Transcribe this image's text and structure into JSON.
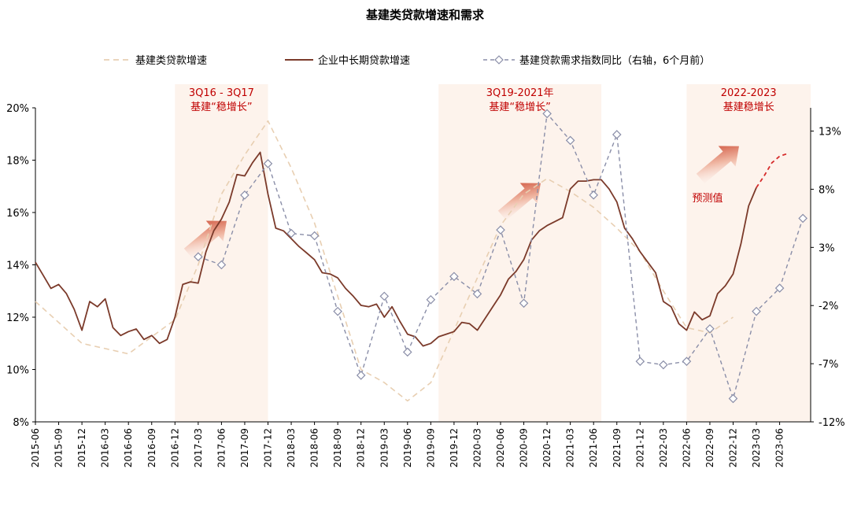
{
  "chart_data": {
    "type": "line",
    "title": "基建类贷款增速和需求",
    "x": [
      "2015-06",
      "2015-09",
      "2015-12",
      "2016-03",
      "2016-06",
      "2016-09",
      "2016-12",
      "2017-03",
      "2017-06",
      "2017-09",
      "2017-12",
      "2018-03",
      "2018-06",
      "2018-09",
      "2018-12",
      "2019-03",
      "2019-06",
      "2019-09",
      "2019-12",
      "2020-03",
      "2020-06",
      "2020-09",
      "2020-12",
      "2021-03",
      "2021-06",
      "2021-09",
      "2021-12",
      "2022-03",
      "2022-06",
      "2022-09",
      "2022-12",
      "2023-03",
      "2023-06"
    ],
    "x_tick_labels": [
      "2015-06",
      "2015-09",
      "2015-12",
      "2016-03",
      "2016-06",
      "2016-09",
      "2016-12",
      "2017-03",
      "2017-06",
      "2017-09",
      "2017-12",
      "2018-03",
      "2018-06",
      "2018-09",
      "2018-12",
      "2019-03",
      "2019-06",
      "2019-09",
      "2019-12",
      "2020-03",
      "2020-06",
      "2020-09",
      "2020-12",
      "2021-03",
      "2021-06",
      "2021-09",
      "2021-12",
      "2022-03",
      "2022-06",
      "2022-09",
      "2022-12",
      "2023-03",
      "2023-06"
    ],
    "y_left": {
      "ticks": [
        "20%",
        "18%",
        "16%",
        "14%",
        "12%",
        "10%",
        "8%"
      ],
      "range": [
        8,
        20
      ]
    },
    "y_right": {
      "ticks": [
        "13%",
        "8%",
        "3%",
        "-2%",
        "-7%",
        "-12%"
      ],
      "range": [
        -12,
        15
      ]
    },
    "legend": {
      "placement": "top",
      "entries": [
        "基建类贷款增速",
        "企业中长期贷款增速",
        "基建贷款需求指数同比（右轴，6个月前）"
      ]
    },
    "series": [
      {
        "name": "基建类贷款增速",
        "axis": "left",
        "color": "#e8cfb2",
        "style": "dashed",
        "points": [
          [
            "2015-06",
            12.6
          ],
          [
            "2015-12",
            11.0
          ],
          [
            "2016-03",
            10.8
          ],
          [
            "2016-06",
            10.6
          ],
          [
            "2016-12",
            11.9
          ],
          [
            "2017-03",
            14.0
          ],
          [
            "2017-06",
            16.7
          ],
          [
            "2017-09",
            18.2
          ],
          [
            "2017-12",
            19.5
          ],
          [
            "2018-03",
            17.7
          ],
          [
            "2018-06",
            15.6
          ],
          [
            "2018-09",
            12.8
          ],
          [
            "2018-12",
            10.0
          ],
          [
            "2019-03",
            9.5
          ],
          [
            "2019-06",
            8.8
          ],
          [
            "2019-09",
            9.5
          ],
          [
            "2019-12",
            11.5
          ],
          [
            "2020-03",
            13.5
          ],
          [
            "2020-06",
            15.5
          ],
          [
            "2020-09",
            16.7
          ],
          [
            "2020-12",
            17.3
          ],
          [
            "2021-03",
            16.8
          ],
          [
            "2021-06",
            16.2
          ],
          [
            "2021-09",
            15.4
          ],
          [
            "2021-12",
            14.5
          ],
          [
            "2022-03",
            13.0
          ],
          [
            "2022-06",
            11.6
          ],
          [
            "2022-09",
            11.4
          ],
          [
            "2022-12",
            12.0
          ]
        ]
      },
      {
        "name": "企业中长期贷款增速",
        "axis": "left",
        "color": "#7b3a2a",
        "style": "solid",
        "points": [
          [
            "2015-06",
            14.1
          ],
          [
            "2015-07",
            13.6
          ],
          [
            "2015-08",
            13.1
          ],
          [
            "2015-09",
            13.25
          ],
          [
            "2015-10",
            12.9
          ],
          [
            "2015-11",
            12.3
          ],
          [
            "2015-12",
            11.5
          ],
          [
            "2016-01",
            12.6
          ],
          [
            "2016-02",
            12.4
          ],
          [
            "2016-03",
            12.7
          ],
          [
            "2016-04",
            11.6
          ],
          [
            "2016-05",
            11.3
          ],
          [
            "2016-06",
            11.45
          ],
          [
            "2016-07",
            11.55
          ],
          [
            "2016-08",
            11.15
          ],
          [
            "2016-09",
            11.3
          ],
          [
            "2016-10",
            11.0
          ],
          [
            "2016-11",
            11.15
          ],
          [
            "2016-12",
            12.0
          ],
          [
            "2017-01",
            13.25
          ],
          [
            "2017-02",
            13.35
          ],
          [
            "2017-03",
            13.3
          ],
          [
            "2017-04",
            14.5
          ],
          [
            "2017-05",
            15.3
          ],
          [
            "2017-06",
            15.75
          ],
          [
            "2017-07",
            16.4
          ],
          [
            "2017-08",
            17.45
          ],
          [
            "2017-09",
            17.4
          ],
          [
            "2017-10",
            17.9
          ],
          [
            "2017-11",
            18.3
          ],
          [
            "2017-12",
            16.7
          ],
          [
            "2018-01",
            15.4
          ],
          [
            "2018-02",
            15.3
          ],
          [
            "2018-03",
            15.0
          ],
          [
            "2018-04",
            14.7
          ],
          [
            "2018-05",
            14.45
          ],
          [
            "2018-06",
            14.2
          ],
          [
            "2018-07",
            13.7
          ],
          [
            "2018-08",
            13.65
          ],
          [
            "2018-09",
            13.5
          ],
          [
            "2018-10",
            13.1
          ],
          [
            "2018-11",
            12.8
          ],
          [
            "2018-12",
            12.45
          ],
          [
            "2019-01",
            12.4
          ],
          [
            "2019-02",
            12.5
          ],
          [
            "2019-03",
            12.0
          ],
          [
            "2019-04",
            12.4
          ],
          [
            "2019-05",
            11.85
          ],
          [
            "2019-06",
            11.35
          ],
          [
            "2019-07",
            11.25
          ],
          [
            "2019-08",
            10.9
          ],
          [
            "2019-09",
            11.0
          ],
          [
            "2019-10",
            11.25
          ],
          [
            "2019-11",
            11.35
          ],
          [
            "2019-12",
            11.45
          ],
          [
            "2020-01",
            11.8
          ],
          [
            "2020-02",
            11.75
          ],
          [
            "2020-03",
            11.5
          ],
          [
            "2020-04",
            11.95
          ],
          [
            "2020-05",
            12.4
          ],
          [
            "2020-06",
            12.85
          ],
          [
            "2020-07",
            13.45
          ],
          [
            "2020-08",
            13.75
          ],
          [
            "2020-09",
            14.2
          ],
          [
            "2020-10",
            14.95
          ],
          [
            "2020-11",
            15.3
          ],
          [
            "2020-12",
            15.5
          ],
          [
            "2021-01",
            15.65
          ],
          [
            "2021-02",
            15.8
          ],
          [
            "2021-03",
            16.9
          ],
          [
            "2021-04",
            17.2
          ],
          [
            "2021-05",
            17.2
          ],
          [
            "2021-06",
            17.25
          ],
          [
            "2021-07",
            17.25
          ],
          [
            "2021-08",
            16.9
          ],
          [
            "2021-09",
            16.4
          ],
          [
            "2021-10",
            15.4
          ],
          [
            "2021-11",
            15.0
          ],
          [
            "2021-12",
            14.5
          ],
          [
            "2022-01",
            14.1
          ],
          [
            "2022-02",
            13.7
          ],
          [
            "2022-03",
            12.6
          ],
          [
            "2022-04",
            12.4
          ],
          [
            "2022-05",
            11.75
          ],
          [
            "2022-06",
            11.5
          ],
          [
            "2022-07",
            12.2
          ],
          [
            "2022-08",
            11.9
          ],
          [
            "2022-09",
            12.05
          ],
          [
            "2022-10",
            12.9
          ],
          [
            "2022-11",
            13.2
          ],
          [
            "2022-12",
            13.65
          ],
          [
            "2023-01",
            14.8
          ],
          [
            "2023-02",
            16.25
          ],
          [
            "2023-03",
            16.95
          ]
        ]
      },
      {
        "name": "基建贷款需求指数同比（右轴，6个月前）",
        "axis": "right",
        "color": "#8a8ea8",
        "style": "dashed-diamond",
        "points": [
          [
            "2017-03",
            2.2
          ],
          [
            "2017-06",
            1.5
          ],
          [
            "2017-09",
            7.5
          ],
          [
            "2017-12",
            10.2
          ],
          [
            "2018-03",
            4.2
          ],
          [
            "2018-06",
            4.0
          ],
          [
            "2018-09",
            -2.5
          ],
          [
            "2018-12",
            -8.0
          ],
          [
            "2019-03",
            -1.2
          ],
          [
            "2019-06",
            -6.0
          ],
          [
            "2019-09",
            -1.5
          ],
          [
            "2019-12",
            0.5
          ],
          [
            "2020-03",
            -1.0
          ],
          [
            "2020-06",
            4.5
          ],
          [
            "2020-09",
            -1.8
          ],
          [
            "2020-12",
            14.5
          ],
          [
            "2021-03",
            12.2
          ],
          [
            "2021-06",
            7.5
          ],
          [
            "2021-09",
            12.7
          ],
          [
            "2021-12",
            -6.8
          ],
          [
            "2022-03",
            -7.1
          ],
          [
            "2022-06",
            -6.8
          ],
          [
            "2022-09",
            -4.0
          ],
          [
            "2022-12",
            -10.0
          ],
          [
            "2023-03",
            -2.5
          ],
          [
            "2023-06",
            -0.5
          ],
          [
            "2023-09",
            5.5
          ]
        ]
      },
      {
        "name": "预测值",
        "axis": "left",
        "color": "#d62b2b",
        "style": "dashed",
        "points": [
          [
            "2023-03",
            16.95
          ],
          [
            "2023-04",
            17.4
          ],
          [
            "2023-05",
            17.9
          ],
          [
            "2023-06",
            18.15
          ],
          [
            "2023-07",
            18.25
          ]
        ]
      }
    ],
    "shaded_periods": [
      {
        "start": "2016-12",
        "end": "2017-12",
        "label_lines": [
          "3Q16 - 3Q17",
          "基建“稳增长”"
        ]
      },
      {
        "start": "2019-10",
        "end": "2021-07",
        "label_lines": [
          "3Q19-2021年",
          "基建“稳增长”"
        ]
      },
      {
        "start": "2022-06",
        "end": "2023-10",
        "label_lines": [
          "2022-2023",
          "基建稳增长"
        ]
      }
    ],
    "annotations": [
      {
        "text": "预测值",
        "color": "#c00000"
      }
    ],
    "colors": {
      "shade": "#fdf3ec",
      "label_red": "#c00000",
      "arrow": "#d9533c"
    }
  }
}
